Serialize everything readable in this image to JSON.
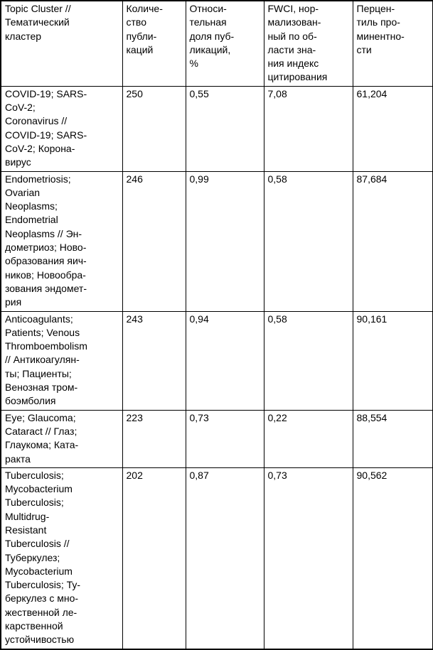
{
  "colors": {
    "border": "#000000",
    "text": "#000000",
    "background": "#ffffff"
  },
  "table": {
    "headers": [
      "Topic Cluster //\nТематический\nкластер",
      "Количе-\nство\nпубли-\nкаций",
      "Относи-\nтельная\nдоля пуб-\nликаций,\n%",
      "FWCI, нор-\nмализован-\nный по об-\nласти зна-\nния индекс\nцитирования",
      "Перцен-\nтиль про-\nминентно-\nсти"
    ],
    "rows": [
      {
        "cells": [
          "COVID-19; SARS-\nCoV-2;\nCoronavirus //\nCOVID-19; SARS-\nCoV-2; Корона-\nвирус",
          "250",
          "0,55",
          "7,08",
          "61,204"
        ]
      },
      {
        "cells": [
          "Endometriosis;\nOvarian\nNeoplasms;\nEndometrial\nNeoplasms // Эн-\nдометриоз; Ново-\nобразования яич-\nников; Новообра-\nзования эндомет-\nрия",
          "246",
          "0,99",
          "0,58",
          "87,684"
        ]
      },
      {
        "cells": [
          "Anticoagulants;\nPatients; Venous\nThromboembolism\n// Антикоагулян-\nты; Пациенты;\nВенозная тром-\nбоэмболия",
          "243",
          "0,94",
          "0,58",
          "90,161"
        ]
      },
      {
        "cells": [
          "Eye; Glaucoma;\nCataract // Глаз;\nГлаукома; Ката-\nракта",
          "223",
          "0,73",
          "0,22",
          "88,554"
        ]
      },
      {
        "cells": [
          "Tuberculosis;\nMycobacterium\nTuberculosis;\nMultidrug-\nResistant\nTuberculosis //\nТуберкулез;\nMycobacterium\nTuberculosis; Ту-\nберкулез с мно-\nжественной ле-\nкарственной\nустойчивостью",
          "202",
          "0,87",
          "0,73",
          "90,562"
        ]
      }
    ]
  }
}
